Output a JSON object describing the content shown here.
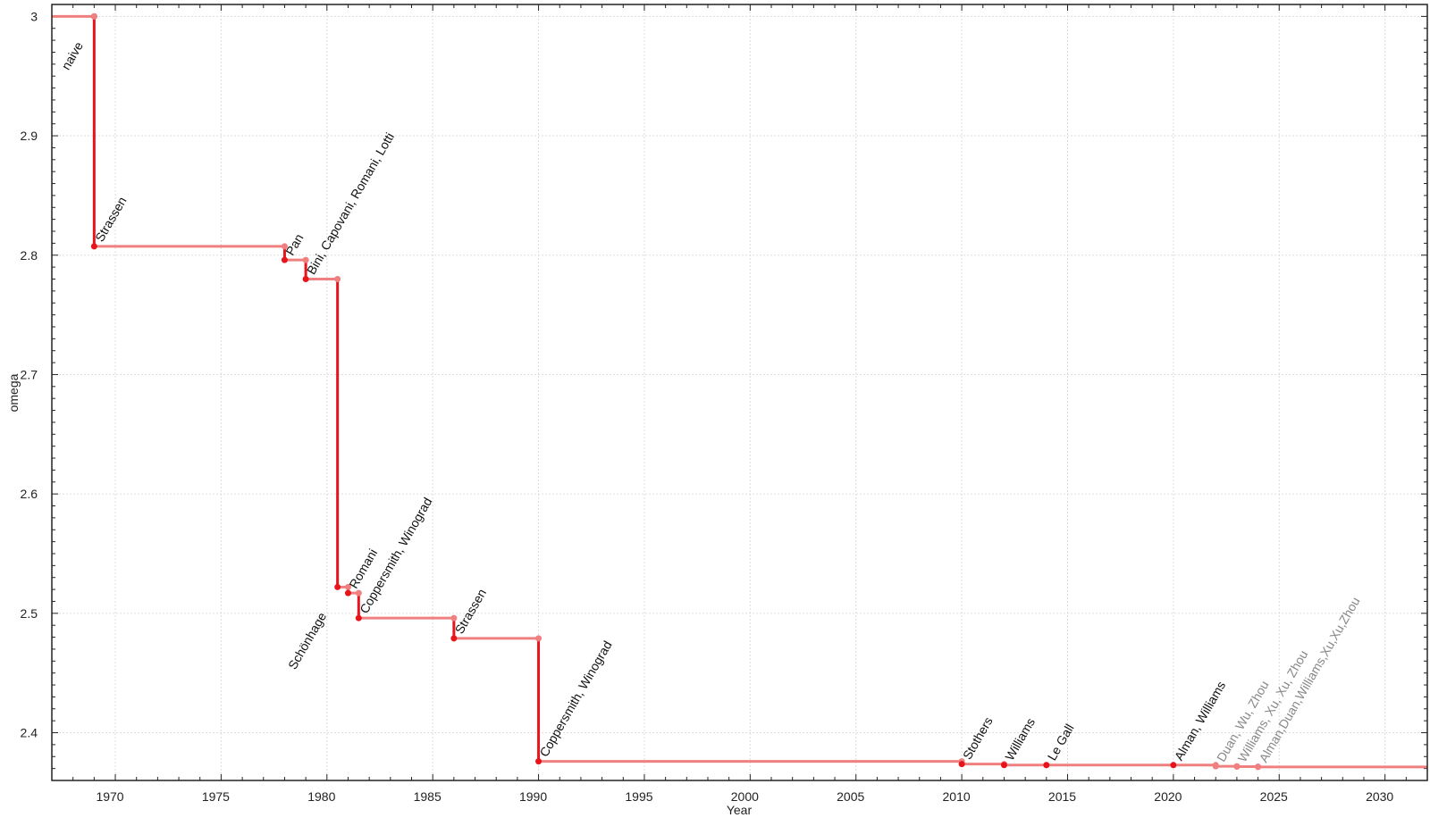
{
  "chart_data": {
    "type": "line",
    "style": "step",
    "xlabel": "Year",
    "ylabel": "omega",
    "xlim": [
      1967,
      2032
    ],
    "ylim": [
      2.36,
      3.01
    ],
    "xticks": [
      1970,
      1975,
      1980,
      1985,
      1990,
      1995,
      2000,
      2005,
      2010,
      2015,
      2020,
      2025,
      2030
    ],
    "yticks": [
      3,
      2.9,
      2.8,
      2.7,
      2.6,
      2.5,
      2.4
    ],
    "ytick_labels": [
      "3",
      "2.9",
      "2.8",
      "2.7",
      "2.6",
      "2.5",
      "2.4"
    ],
    "grid": true,
    "colors": {
      "step_horizontal": "#f08080",
      "step_vertical": "#e8141c",
      "point_new": "#e8141c",
      "point_prev": "#f08080",
      "label": "#111111",
      "label_muted": "#888888"
    },
    "points": [
      {
        "year": 1969,
        "omega": 3.0,
        "label": "naive",
        "label_side": "below-left",
        "muted": false
      },
      {
        "year": 1969,
        "omega": 2.8074,
        "label": "Strassen",
        "muted": false
      },
      {
        "year": 1978,
        "omega": 2.796,
        "label": "Pan",
        "muted": false
      },
      {
        "year": 1979,
        "omega": 2.78,
        "label": "Bini, Capovani, Romani, Lotti",
        "muted": false
      },
      {
        "year": 1980.5,
        "omega": 2.522,
        "label": "Schönhage",
        "label_side": "below-left",
        "muted": false
      },
      {
        "year": 1981,
        "omega": 2.517,
        "label": "Romani",
        "muted": false
      },
      {
        "year": 1981.5,
        "omega": 2.496,
        "label": "Coppersmith, Winograd",
        "muted": false
      },
      {
        "year": 1986,
        "omega": 2.479,
        "label": "Strassen",
        "muted": false
      },
      {
        "year": 1990,
        "omega": 2.376,
        "label": "Coppersmith, Winograd",
        "muted": false
      },
      {
        "year": 2010,
        "omega": 2.3737,
        "label": "Stothers",
        "muted": false
      },
      {
        "year": 2012,
        "omega": 2.3729,
        "label": "Williams",
        "muted": false
      },
      {
        "year": 2014,
        "omega": 2.37286,
        "label": "Le Gall",
        "muted": false
      },
      {
        "year": 2020,
        "omega": 2.37286,
        "label": "Alman, Williams",
        "muted": false
      },
      {
        "year": 2022,
        "omega": 2.37187,
        "label": "Duan, Wu, Zhou",
        "muted": true
      },
      {
        "year": 2023,
        "omega": 2.37155,
        "label": "Williams, Xu, Xu, Zhou",
        "muted": true
      },
      {
        "year": 2024,
        "omega": 2.37134,
        "label": "Alman,Duan,Williams,Xu,Xu,Zhou",
        "muted": true
      }
    ]
  }
}
